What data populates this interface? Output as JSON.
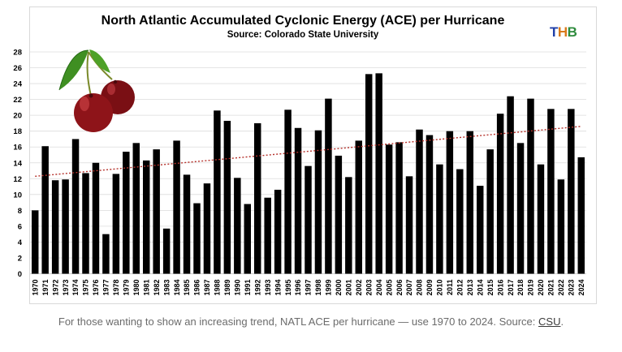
{
  "chart_data": {
    "type": "bar",
    "title": "North Atlantic Accumulated Cyclonic Energy (ACE) per Hurricane",
    "subtitle": "Source: Colorado State University",
    "xlabel": "",
    "ylabel": "",
    "ylim": [
      0,
      28
    ],
    "yticks": [
      0,
      2,
      4,
      6,
      8,
      10,
      12,
      14,
      16,
      18,
      20,
      22,
      24,
      26,
      28
    ],
    "grid": "horizontal",
    "trendline": {
      "style": "dotted",
      "color": "#b5312b",
      "start": 12.3,
      "end": 18.6
    },
    "bar_color": "#000000",
    "categories": [
      "1970",
      "1971",
      "1972",
      "1973",
      "1974",
      "1975",
      "1976",
      "1977",
      "1978",
      "1979",
      "1980",
      "1981",
      "1982",
      "1983",
      "1984",
      "1985",
      "1986",
      "1987",
      "1988",
      "1989",
      "1990",
      "1991",
      "1992",
      "1993",
      "1994",
      "1995",
      "1996",
      "1997",
      "1998",
      "1999",
      "2000",
      "2001",
      "2002",
      "2003",
      "2004",
      "2005",
      "2006",
      "2007",
      "2008",
      "2009",
      "2010",
      "2011",
      "2012",
      "2013",
      "2014",
      "2015",
      "2016",
      "2017",
      "2018",
      "2019",
      "2020",
      "2021",
      "2022",
      "2023",
      "2024"
    ],
    "values": [
      8.0,
      16.1,
      11.8,
      11.9,
      17.0,
      12.7,
      14.0,
      5.0,
      12.6,
      15.4,
      16.5,
      14.3,
      15.7,
      5.7,
      16.8,
      12.5,
      8.9,
      11.4,
      20.6,
      19.3,
      12.1,
      8.8,
      19.0,
      9.6,
      10.6,
      20.7,
      18.4,
      13.6,
      18.1,
      22.1,
      14.9,
      12.2,
      16.8,
      25.2,
      25.3,
      16.3,
      16.6,
      12.3,
      18.2,
      17.5,
      13.8,
      18.0,
      13.2,
      18.0,
      11.1,
      15.7,
      20.2,
      22.4,
      16.5,
      22.1,
      13.8,
      20.8,
      11.9,
      20.8,
      14.7
    ]
  },
  "brand": {
    "t": "T",
    "h": "H",
    "b": "B"
  },
  "caption": {
    "text": "For those wanting to show an increasing trend, NATL ACE per hurricane — use 1970 to 2024. Source:",
    "link": "CSU",
    "end": "."
  },
  "image": {
    "icon": "cherries-icon"
  }
}
